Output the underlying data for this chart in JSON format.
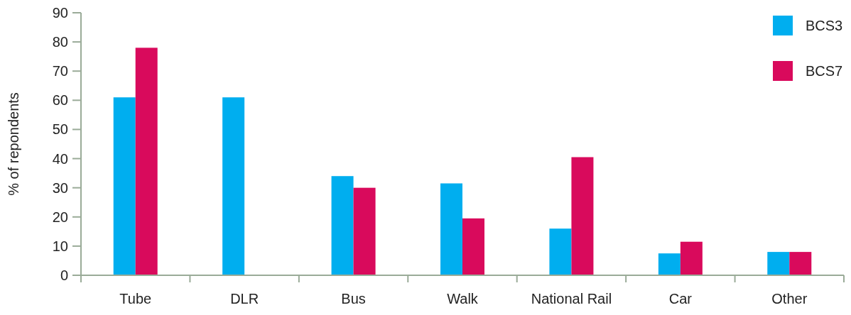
{
  "chart_data": {
    "type": "bar",
    "ylabel": "% of repondents",
    "categories": [
      "Tube",
      "DLR",
      "Bus",
      "Walk",
      "National Rail",
      "Car",
      "Other"
    ],
    "series": [
      {
        "name": "BCS3",
        "color": "#00aeef",
        "values": [
          61,
          61,
          34,
          31.5,
          16,
          7.5,
          8
        ]
      },
      {
        "name": "BCS7",
        "color": "#d90a5c",
        "values": [
          78,
          null,
          30,
          19.5,
          40.5,
          11.5,
          8
        ]
      }
    ],
    "ylim": [
      0,
      90
    ],
    "yticks": [
      0,
      10,
      20,
      30,
      40,
      50,
      60,
      70,
      80,
      90
    ],
    "grid": false,
    "legend": "top right"
  }
}
